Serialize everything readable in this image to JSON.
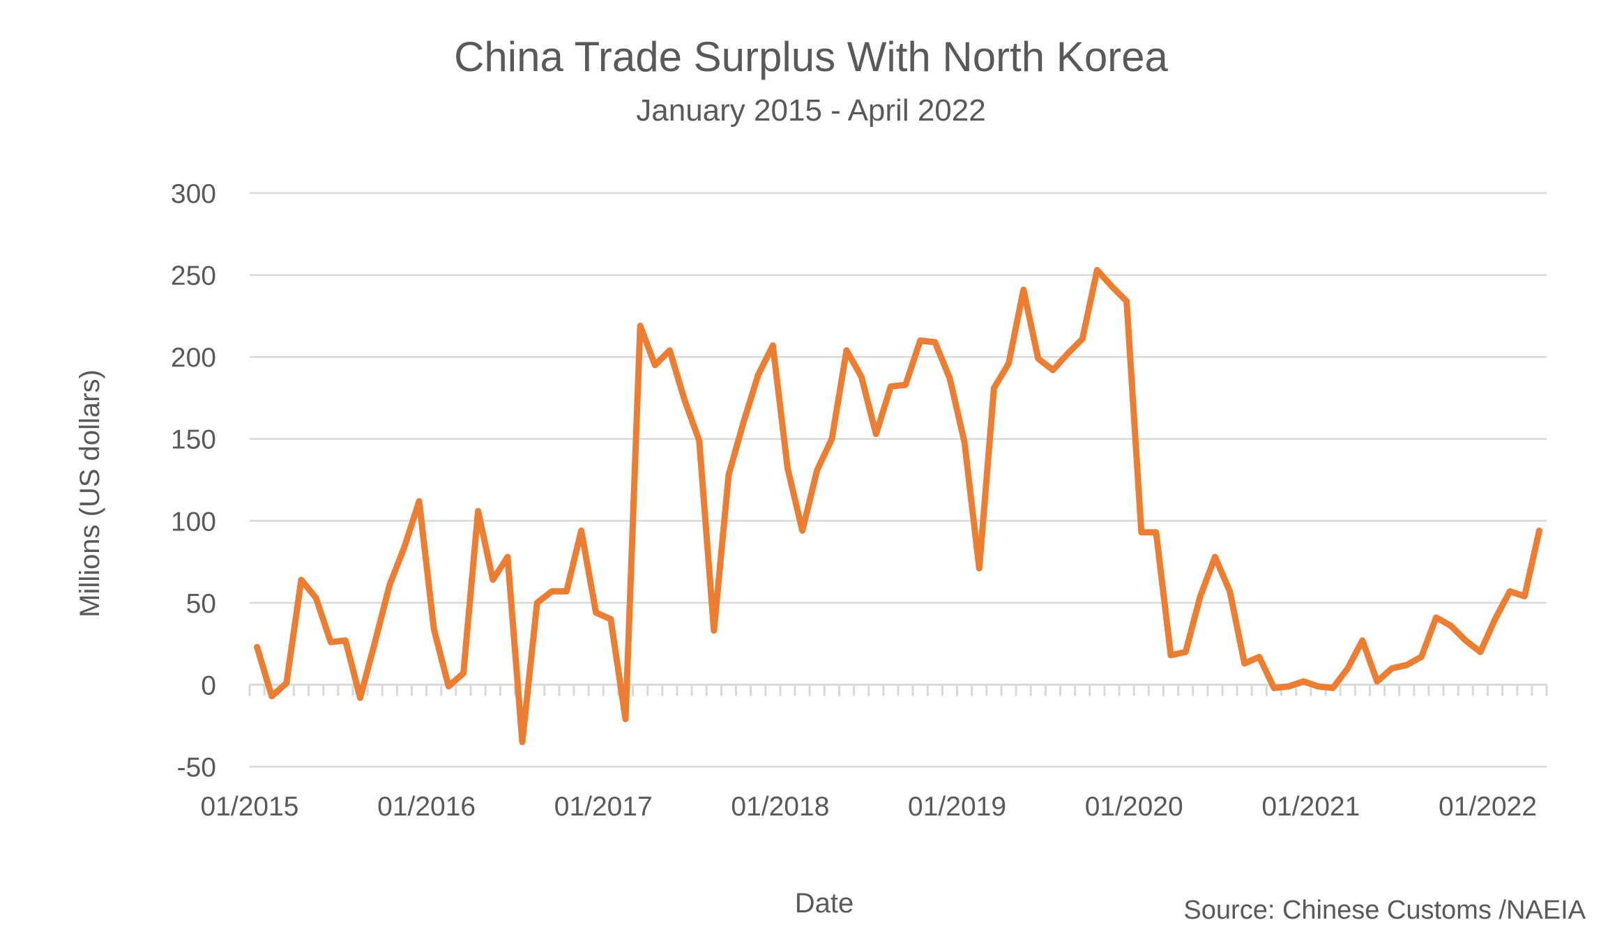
{
  "chart_data": {
    "type": "line",
    "title": "China Trade Surplus With North Korea",
    "subtitle": "January 2015 - April 2022",
    "xlabel": "Date",
    "ylabel": "Millions (US dollars)",
    "source": "Source: Chinese Customs /NAEIA",
    "ylim": [
      -50,
      300
    ],
    "yticks": [
      -50,
      0,
      50,
      100,
      150,
      200,
      250,
      300
    ],
    "xticks": [
      "01/2015",
      "01/2016",
      "01/2017",
      "01/2018",
      "01/2019",
      "01/2020",
      "01/2021",
      "01/2022"
    ],
    "grid": true,
    "legend": "none",
    "colors": {
      "series": "#ed7d31",
      "grid": "#d9d9d9",
      "text": "#595959"
    },
    "series": [
      {
        "x": [
          "01/2015",
          "02/2015",
          "03/2015",
          "04/2015",
          "05/2015",
          "06/2015",
          "07/2015",
          "08/2015",
          "09/2015",
          "10/2015",
          "11/2015",
          "12/2015",
          "01/2016",
          "02/2016",
          "03/2016",
          "04/2016",
          "05/2016",
          "06/2016",
          "07/2016",
          "08/2016",
          "09/2016",
          "10/2016",
          "11/2016",
          "12/2016",
          "01/2017",
          "02/2017",
          "03/2017",
          "04/2017",
          "05/2017",
          "06/2017",
          "07/2017",
          "08/2017",
          "09/2017",
          "10/2017",
          "11/2017",
          "12/2017",
          "01/2018",
          "02/2018",
          "03/2018",
          "04/2018",
          "05/2018",
          "06/2018",
          "07/2018",
          "08/2018",
          "09/2018",
          "10/2018",
          "11/2018",
          "12/2018",
          "01/2019",
          "02/2019",
          "03/2019",
          "04/2019",
          "05/2019",
          "06/2019",
          "07/2019",
          "08/2019",
          "09/2019",
          "10/2019",
          "11/2019",
          "12/2019",
          "01/2020",
          "02/2020",
          "03/2020",
          "04/2020",
          "05/2020",
          "06/2020",
          "07/2020",
          "08/2020",
          "09/2020",
          "10/2020",
          "11/2020",
          "12/2020",
          "01/2021",
          "02/2021",
          "03/2021",
          "04/2021",
          "05/2021",
          "06/2021",
          "07/2021",
          "08/2021",
          "09/2021",
          "10/2021",
          "11/2021",
          "12/2021",
          "01/2022",
          "02/2022",
          "03/2022",
          "04/2022"
        ],
        "values": [
          23,
          -7,
          1,
          64,
          53,
          26,
          27,
          -8,
          26,
          61,
          84,
          112,
          34,
          -1,
          7,
          106,
          64,
          78,
          -35,
          50,
          57,
          57,
          94,
          44,
          40,
          -21,
          219,
          195,
          204,
          174,
          149,
          33,
          128,
          160,
          189,
          207,
          132,
          94,
          131,
          150,
          204,
          188,
          153,
          182,
          183,
          210,
          209,
          187,
          148,
          71,
          181,
          196,
          241,
          199,
          192,
          202,
          211,
          253,
          243,
          234,
          93,
          93,
          18,
          20,
          54,
          78,
          57,
          13,
          17,
          -2,
          -1,
          2,
          -1,
          -2,
          10,
          27,
          2,
          10,
          12,
          17,
          41,
          36,
          27,
          20,
          40,
          57,
          54,
          94
        ]
      }
    ]
  }
}
